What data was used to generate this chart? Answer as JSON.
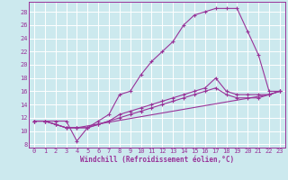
{
  "background_color": "#cce9ee",
  "grid_color": "#ffffff",
  "line_color": "#993399",
  "xlabel": "Windchill (Refroidissement éolien,°C)",
  "xlim": [
    -0.5,
    23.5
  ],
  "ylim": [
    7.5,
    29.5
  ],
  "yticks": [
    8,
    10,
    12,
    14,
    16,
    18,
    20,
    22,
    24,
    26,
    28
  ],
  "xticks": [
    0,
    1,
    2,
    3,
    4,
    5,
    6,
    7,
    8,
    9,
    10,
    11,
    12,
    13,
    14,
    15,
    16,
    17,
    18,
    19,
    20,
    21,
    22,
    23
  ],
  "curves": [
    {
      "x": [
        0,
        1,
        2,
        3,
        4,
        5,
        6,
        7,
        8,
        9,
        10,
        11,
        12,
        13,
        14,
        15,
        16,
        17,
        18,
        19,
        20,
        21,
        22,
        23
      ],
      "y": [
        11.5,
        11.5,
        11.5,
        11.5,
        8.5,
        10.5,
        11.5,
        12.5,
        15.5,
        16.0,
        18.5,
        20.5,
        22.0,
        23.5,
        26.0,
        27.5,
        28.0,
        28.5,
        28.5,
        28.5,
        25.0,
        21.5,
        16.0,
        16.0
      ]
    },
    {
      "x": [
        0,
        1,
        2,
        3,
        4,
        5,
        6,
        7,
        8,
        9,
        10,
        11,
        12,
        13,
        14,
        15,
        16,
        17,
        18,
        19,
        20,
        21,
        22,
        23
      ],
      "y": [
        11.5,
        11.5,
        11.0,
        10.5,
        10.5,
        10.5,
        11.0,
        11.5,
        12.5,
        13.0,
        13.5,
        14.0,
        14.5,
        15.0,
        15.5,
        16.0,
        16.5,
        18.0,
        16.0,
        15.5,
        15.5,
        15.5,
        15.5,
        16.0
      ]
    },
    {
      "x": [
        0,
        1,
        2,
        3,
        4,
        5,
        6,
        7,
        8,
        9,
        10,
        11,
        12,
        13,
        14,
        15,
        16,
        17,
        18,
        19,
        20,
        21,
        22,
        23
      ],
      "y": [
        11.5,
        11.5,
        11.0,
        10.5,
        10.5,
        10.5,
        11.0,
        11.5,
        12.0,
        12.5,
        13.0,
        13.5,
        14.0,
        14.5,
        15.0,
        15.5,
        16.0,
        16.5,
        15.5,
        15.0,
        15.0,
        15.0,
        15.5,
        16.0
      ]
    },
    {
      "x": [
        0,
        1,
        2,
        3,
        4,
        22,
        23
      ],
      "y": [
        11.5,
        11.5,
        11.0,
        10.5,
        10.5,
        15.5,
        16.0
      ]
    }
  ]
}
